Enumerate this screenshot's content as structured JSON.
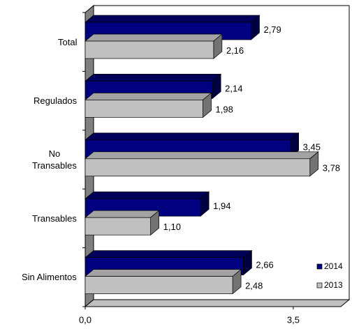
{
  "chart_data": {
    "type": "bar",
    "orientation": "horizontal",
    "three_d": true,
    "categories": [
      "Total",
      "Regulados",
      "No\nTransables",
      "Transables",
      "Sin Alimentos"
    ],
    "series": [
      {
        "name": "2014",
        "color": "#000080",
        "values": [
          2.79,
          2.14,
          3.45,
          1.94,
          2.66
        ],
        "value_labels": [
          "2,79",
          "2,14",
          "3,45",
          "1,94",
          "2,66"
        ]
      },
      {
        "name": "2013",
        "color": "#c0c0c0",
        "values": [
          2.16,
          1.98,
          3.78,
          1.1,
          2.48
        ],
        "value_labels": [
          "2,16",
          "1,98",
          "3,78",
          "1,10",
          "2,48"
        ]
      }
    ],
    "xlim": [
      0,
      4.3
    ],
    "xticks": [
      {
        "value": 0,
        "label": "0,0"
      },
      {
        "value": 3.5,
        "label": "3,5"
      }
    ],
    "legend": "bottom-right"
  }
}
